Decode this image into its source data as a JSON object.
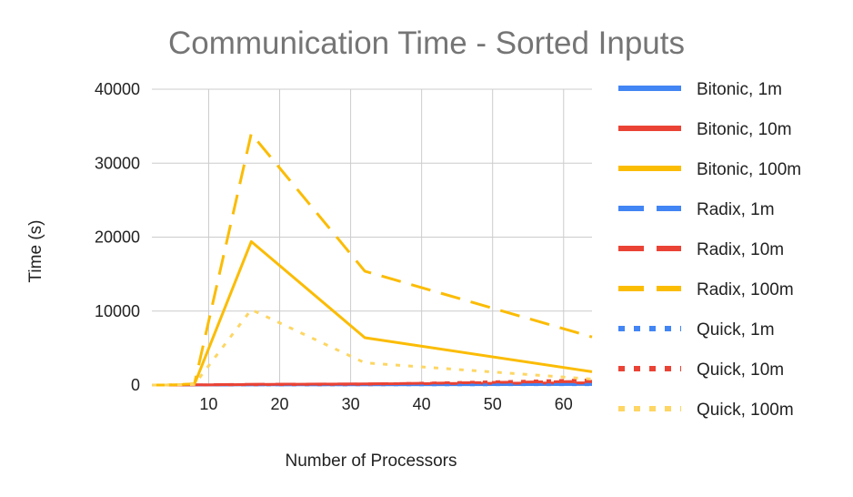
{
  "chart_data": {
    "type": "line",
    "title": "Communication Time - Sorted Inputs",
    "xlabel": "Number of Processors",
    "ylabel": "Time (s)",
    "xlim": [
      2,
      64
    ],
    "ylim": [
      0,
      40000
    ],
    "xticks": [
      10,
      20,
      30,
      40,
      50,
      60
    ],
    "yticks": [
      0,
      10000,
      20000,
      30000,
      40000
    ],
    "grid": true,
    "legend_position": "right",
    "series": [
      {
        "name": "Bitonic, 1m",
        "color": "#4285f4",
        "style": "solid",
        "x": [
          2,
          4,
          8,
          16,
          32,
          64
        ],
        "values": [
          0,
          0,
          0,
          20,
          40,
          80
        ]
      },
      {
        "name": "Bitonic, 10m",
        "color": "#ea4335",
        "style": "solid",
        "x": [
          2,
          4,
          8,
          16,
          32,
          64
        ],
        "values": [
          0,
          0,
          10,
          80,
          150,
          300
        ]
      },
      {
        "name": "Bitonic, 100m",
        "color": "#fbbc04",
        "style": "solid",
        "x": [
          2,
          4,
          8,
          16,
          32,
          64
        ],
        "values": [
          0,
          0,
          100,
          19400,
          6400,
          1800
        ]
      },
      {
        "name": "Radix, 1m",
        "color": "#4285f4",
        "style": "dashed",
        "x": [
          2,
          4,
          8,
          16,
          32,
          64
        ],
        "values": [
          0,
          0,
          0,
          30,
          60,
          100
        ]
      },
      {
        "name": "Radix, 10m",
        "color": "#ea4335",
        "style": "dashed",
        "x": [
          2,
          4,
          8,
          16,
          32,
          64
        ],
        "values": [
          0,
          0,
          20,
          100,
          150,
          500
        ]
      },
      {
        "name": "Radix, 100m",
        "color": "#fbbc04",
        "style": "dashed",
        "x": [
          2,
          4,
          8,
          16,
          32,
          64
        ],
        "values": [
          0,
          0,
          150,
          34000,
          15400,
          6500
        ]
      },
      {
        "name": "Quick, 1m",
        "color": "#4285f4",
        "style": "dotted",
        "x": [
          2,
          4,
          8,
          16,
          32,
          64
        ],
        "values": [
          0,
          0,
          0,
          10,
          20,
          50
        ]
      },
      {
        "name": "Quick, 10m",
        "color": "#ea4335",
        "style": "dotted",
        "x": [
          2,
          4,
          8,
          16,
          32,
          64
        ],
        "values": [
          0,
          0,
          10,
          50,
          100,
          700
        ]
      },
      {
        "name": "Quick, 100m",
        "color": "#fdd663",
        "style": "dotted",
        "x": [
          2,
          4,
          8,
          16,
          32,
          64
        ],
        "values": [
          0,
          0,
          80,
          10200,
          3000,
          800
        ]
      }
    ]
  }
}
